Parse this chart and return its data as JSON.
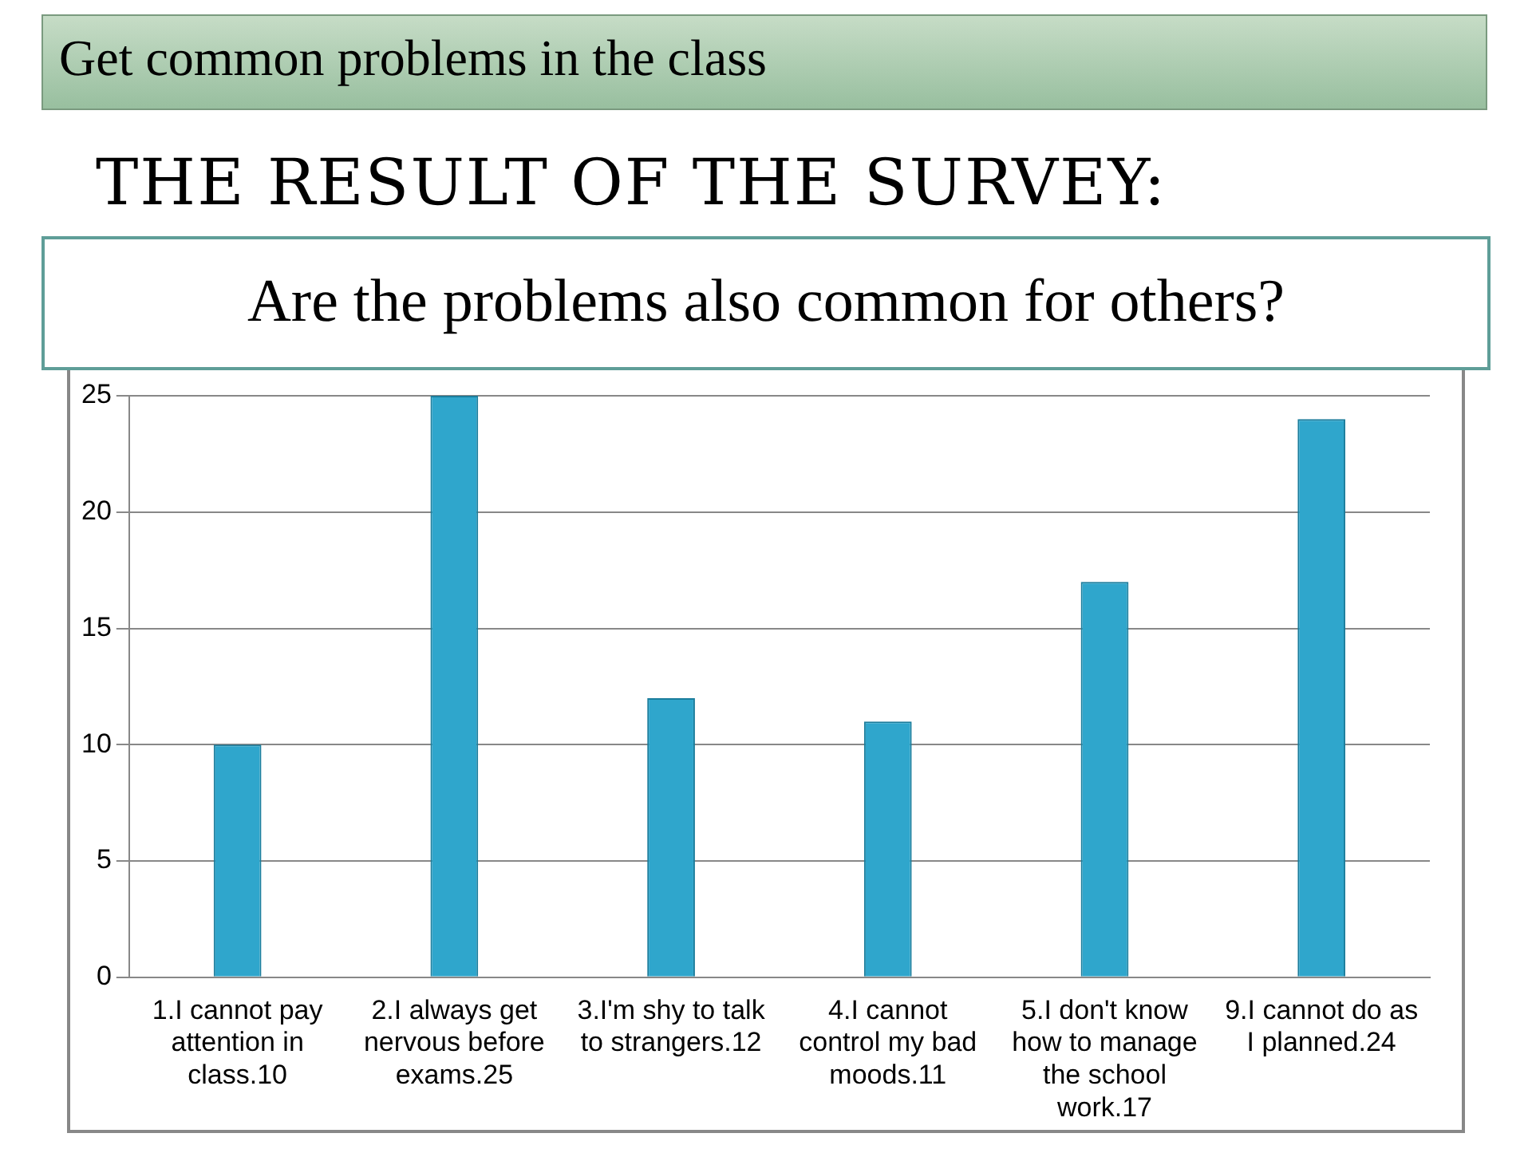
{
  "chart_data": {
    "type": "bar",
    "title": "THE RESULT OF THE SURVEY:",
    "subtitle": "Are the problems also common for others?",
    "annotations": [
      "Get common problems in the class"
    ],
    "categories": [
      "1.I cannot pay attention in class.10",
      "2.I always get nervous before exams.25",
      "3.I'm shy to talk to strangers.12",
      "4.I cannot control my bad moods.11",
      "5.I don't know how to manage the school work.17",
      "9.I cannot do as I planned.24"
    ],
    "values": [
      10,
      25,
      12,
      11,
      17,
      24
    ],
    "color": "#2fa6cc",
    "ylim": [
      0,
      25
    ],
    "yticks": [
      0,
      5,
      10,
      15,
      20,
      25
    ],
    "grid": "y",
    "legend": false
  }
}
